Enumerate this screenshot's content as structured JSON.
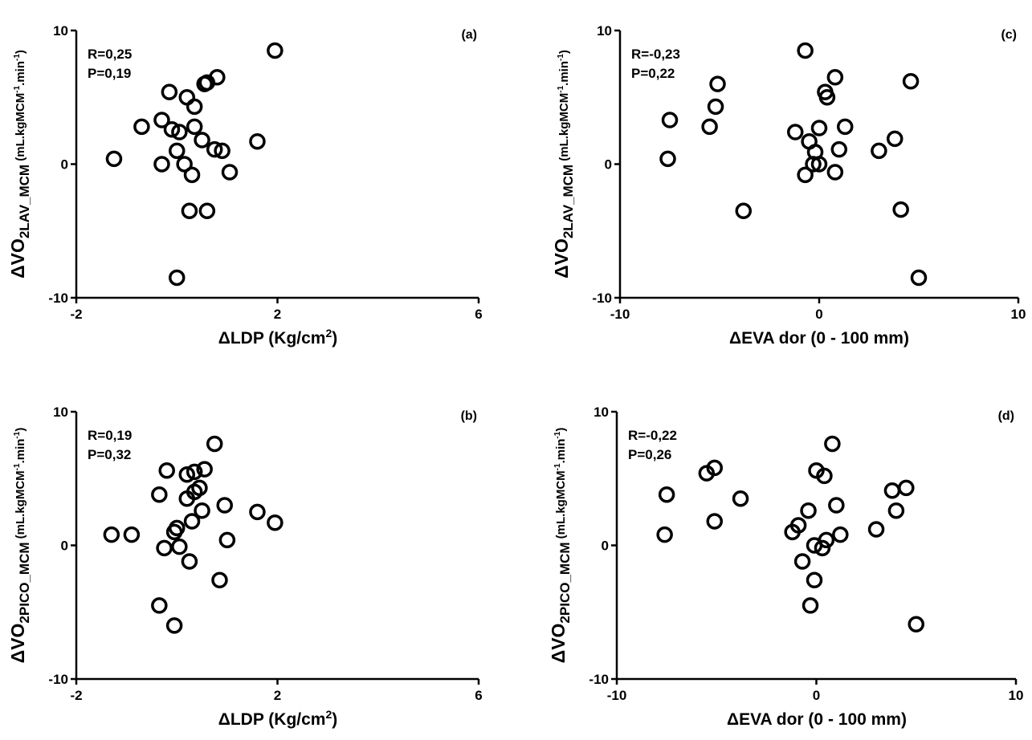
{
  "chart_data": [
    {
      "type": "scatter",
      "panel_label": "(a)",
      "stats": [
        "R=0,25",
        "P=0,19"
      ],
      "xlabel_prefix": "ΔLDP (Kg/cm",
      "xlabel_sup": "2",
      "xlabel_suffix": ")",
      "ylabel_delta": "Δ",
      "ylabel_main": "VO",
      "ylabel_sub": "2LAV_MCM",
      "ylabel_unit_pre": " (mL.kgMCM",
      "ylabel_unit_sup": "-1",
      "ylabel_unit_post": ".min",
      "ylabel_unit_sup2": "-1",
      "ylabel_unit_end": ")",
      "xlim": [
        -2,
        6
      ],
      "ylim": [
        -10,
        10
      ],
      "xticks": [
        -2,
        2,
        6
      ],
      "yticks": [
        -10,
        0,
        10
      ],
      "points": [
        [
          1.95,
          8.5
        ],
        [
          0.8,
          6.5
        ],
        [
          0.55,
          6.0
        ],
        [
          0.6,
          6.1
        ],
        [
          -0.15,
          5.4
        ],
        [
          0.2,
          5.0
        ],
        [
          0.35,
          4.3
        ],
        [
          -0.3,
          3.3
        ],
        [
          -0.7,
          2.8
        ],
        [
          0.35,
          2.8
        ],
        [
          -0.1,
          2.6
        ],
        [
          0.5,
          1.8
        ],
        [
          0.05,
          2.4
        ],
        [
          1.6,
          1.7
        ],
        [
          0.75,
          1.1
        ],
        [
          0.9,
          1.0
        ],
        [
          0.0,
          1.0
        ],
        [
          -1.25,
          0.4
        ],
        [
          -0.3,
          0.0
        ],
        [
          0.15,
          0.0
        ],
        [
          0.3,
          -0.8
        ],
        [
          1.05,
          -0.6
        ],
        [
          0.25,
          -3.5
        ],
        [
          0.6,
          -3.5
        ],
        [
          0.0,
          -8.5
        ]
      ]
    },
    {
      "type": "scatter",
      "panel_label": "(b)",
      "stats": [
        "R=0,19",
        "P=0,32"
      ],
      "xlabel_prefix": "ΔLDP (Kg/cm",
      "xlabel_sup": "2",
      "xlabel_suffix": ")",
      "ylabel_delta": "Δ",
      "ylabel_main": "VO",
      "ylabel_sub": "2PICO_MCM",
      "ylabel_unit_pre": " (mL.kgMCM",
      "ylabel_unit_sup": "-1",
      "ylabel_unit_post": ".min",
      "ylabel_unit_sup2": "-1",
      "ylabel_unit_end": ")",
      "xlim": [
        -2,
        6
      ],
      "ylim": [
        -10,
        10
      ],
      "xticks": [
        -2,
        2,
        6
      ],
      "yticks": [
        -10,
        0,
        10
      ],
      "points": [
        [
          0.75,
          7.6
        ],
        [
          -0.2,
          5.6
        ],
        [
          0.55,
          5.7
        ],
        [
          0.2,
          5.3
        ],
        [
          0.35,
          5.5
        ],
        [
          0.45,
          4.3
        ],
        [
          0.35,
          4.0
        ],
        [
          -0.35,
          3.8
        ],
        [
          0.2,
          3.5
        ],
        [
          0.95,
          3.0
        ],
        [
          1.6,
          2.5
        ],
        [
          0.5,
          2.6
        ],
        [
          0.3,
          1.8
        ],
        [
          1.95,
          1.7
        ],
        [
          0.0,
          1.3
        ],
        [
          -1.3,
          0.8
        ],
        [
          -0.9,
          0.8
        ],
        [
          -0.05,
          1.0
        ],
        [
          1.0,
          0.4
        ],
        [
          -0.25,
          -0.2
        ],
        [
          0.05,
          -0.1
        ],
        [
          0.25,
          -1.2
        ],
        [
          0.85,
          -2.6
        ],
        [
          -0.35,
          -4.5
        ],
        [
          -0.05,
          -6.0
        ]
      ]
    },
    {
      "type": "scatter",
      "panel_label": "(c)",
      "stats": [
        "R=-0,23",
        "P=0,22"
      ],
      "xlabel_prefix": "ΔEVA dor (0 - 100 mm)",
      "xlabel_sup": "",
      "xlabel_suffix": "",
      "ylabel_delta": "Δ",
      "ylabel_main": "VO",
      "ylabel_sub": "2LAV_MCM",
      "ylabel_unit_pre": " (mL.kgMCM",
      "ylabel_unit_sup": "-1",
      "ylabel_unit_post": ".min",
      "ylabel_unit_sup2": "-1",
      "ylabel_unit_end": ")",
      "xlim": [
        -10,
        10
      ],
      "ylim": [
        -10,
        10
      ],
      "xticks": [
        -10,
        0,
        10
      ],
      "yticks": [
        -10,
        0,
        10
      ],
      "points": [
        [
          -0.7,
          8.5
        ],
        [
          0.8,
          6.5
        ],
        [
          4.6,
          6.2
        ],
        [
          -5.1,
          6.0
        ],
        [
          0.3,
          5.4
        ],
        [
          0.4,
          5.0
        ],
        [
          -5.2,
          4.3
        ],
        [
          -7.5,
          3.3
        ],
        [
          -5.5,
          2.8
        ],
        [
          1.3,
          2.8
        ],
        [
          0.0,
          2.7
        ],
        [
          -1.2,
          2.4
        ],
        [
          3.8,
          1.9
        ],
        [
          -0.5,
          1.7
        ],
        [
          1.0,
          1.1
        ],
        [
          3.0,
          1.0
        ],
        [
          -0.2,
          0.9
        ],
        [
          -7.6,
          0.4
        ],
        [
          -0.3,
          0.0
        ],
        [
          0.0,
          0.0
        ],
        [
          -0.7,
          -0.8
        ],
        [
          0.8,
          -0.6
        ],
        [
          -3.8,
          -3.5
        ],
        [
          4.1,
          -3.4
        ],
        [
          5.0,
          -8.5
        ]
      ]
    },
    {
      "type": "scatter",
      "panel_label": "(d)",
      "stats": [
        "R=-0,22",
        "P=0,26"
      ],
      "xlabel_prefix": "ΔEVA dor (0 - 100 mm)",
      "xlabel_sup": "",
      "xlabel_suffix": "",
      "ylabel_delta": "Δ",
      "ylabel_main": "VO",
      "ylabel_sub": "2PICO_MCM",
      "ylabel_unit_pre": " (mL.kgMCM",
      "ylabel_unit_sup": "-1",
      "ylabel_unit_post": ".min",
      "ylabel_unit_sup2": "-1",
      "ylabel_unit_end": ")",
      "xlim": [
        -10,
        10
      ],
      "ylim": [
        -10,
        10
      ],
      "xticks": [
        -10,
        0,
        10
      ],
      "yticks": [
        -10,
        0,
        10
      ],
      "points": [
        [
          0.8,
          7.6
        ],
        [
          -5.1,
          5.8
        ],
        [
          -5.5,
          5.4
        ],
        [
          0.0,
          5.6
        ],
        [
          0.4,
          5.2
        ],
        [
          4.5,
          4.3
        ],
        [
          3.8,
          4.1
        ],
        [
          -7.5,
          3.8
        ],
        [
          -3.8,
          3.5
        ],
        [
          1.0,
          3.0
        ],
        [
          4.0,
          2.6
        ],
        [
          -0.4,
          2.6
        ],
        [
          -5.1,
          1.8
        ],
        [
          -0.9,
          1.5
        ],
        [
          -1.2,
          1.0
        ],
        [
          3.0,
          1.2
        ],
        [
          -7.6,
          0.8
        ],
        [
          1.2,
          0.8
        ],
        [
          0.5,
          0.4
        ],
        [
          -0.1,
          0.0
        ],
        [
          0.3,
          -0.2
        ],
        [
          -0.7,
          -1.2
        ],
        [
          -0.1,
          -2.6
        ],
        [
          -0.3,
          -4.5
        ],
        [
          5.0,
          -5.9
        ]
      ]
    }
  ]
}
